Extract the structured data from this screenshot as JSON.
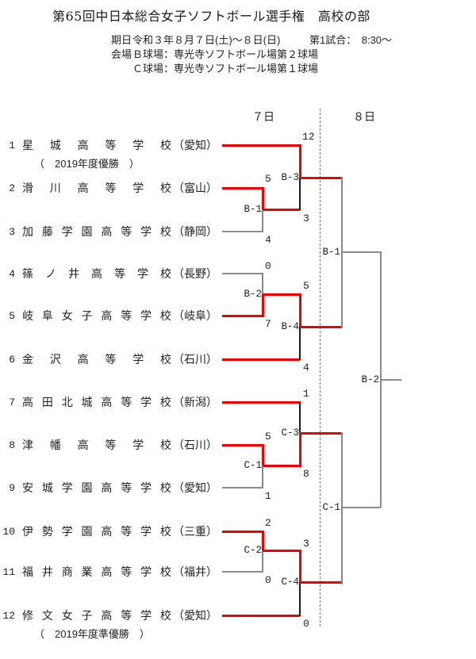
{
  "title": "第65回中日本総合女子ソフトボール選手権　高校の部",
  "info": {
    "date_label": "期日",
    "date_value": "令和３年８月７日(土)～８日(日)",
    "first_game": "第1試合：　8:30～",
    "venue_label": "会場",
    "venue_b": "Ｂ球場：専光寺ソフトボール場第２球場",
    "venue_c": "Ｃ球場：専光寺ソフトボール場第１球場"
  },
  "bracket": {
    "day7_label": "７日",
    "day8_label": "８日",
    "teams": [
      {
        "no": "1",
        "name": "星城高等学校",
        "pref": "（愛知）",
        "note": "（　2019年度優勝　）"
      },
      {
        "no": "2",
        "name": "滑川高等学校",
        "pref": "（富山）"
      },
      {
        "no": "3",
        "name": "加藤学園高等学校",
        "pref": "（静岡）"
      },
      {
        "no": "4",
        "name": "篠ノ井高等学校",
        "pref": "（長野）"
      },
      {
        "no": "5",
        "name": "岐阜女子高等学校",
        "pref": "（岐阜）"
      },
      {
        "no": "6",
        "name": "金沢高等学校",
        "pref": "（石川）"
      },
      {
        "no": "7",
        "name": "高田北城高等学校",
        "pref": "（新潟）"
      },
      {
        "no": "8",
        "name": "津幡高等学校",
        "pref": "（石川）"
      },
      {
        "no": "9",
        "name": "安城学園高等学校",
        "pref": "（愛知）"
      },
      {
        "no": "10",
        "name": "伊勢学園高等学校",
        "pref": "（三重）"
      },
      {
        "no": "11",
        "name": "福井商業高等学校",
        "pref": "（福井）"
      },
      {
        "no": "12",
        "name": "修文女子高等学校",
        "pref": "（愛知）",
        "note": "（　2019年度準優勝　）"
      }
    ],
    "matches": [
      {
        "id": "B-1",
        "day": "7",
        "top_score": "5",
        "bottom_score": "4"
      },
      {
        "id": "B-2",
        "day": "7",
        "top_score": "0",
        "bottom_score": "7"
      },
      {
        "id": "B-3",
        "day": "7",
        "top_score": "12",
        "bottom_score": "3"
      },
      {
        "id": "B-4",
        "day": "7",
        "top_score": "5",
        "bottom_score": "4"
      },
      {
        "id": "C-1",
        "day": "7",
        "top_score": "5",
        "bottom_score": "1"
      },
      {
        "id": "C-2",
        "day": "7",
        "top_score": "2",
        "bottom_score": "0"
      },
      {
        "id": "C-3",
        "day": "7",
        "top_score": "1",
        "bottom_score": "8"
      },
      {
        "id": "C-4",
        "day": "7",
        "top_score": "3",
        "bottom_score": "0"
      },
      {
        "id": "B-1",
        "day": "8"
      },
      {
        "id": "C-1",
        "day": "8"
      },
      {
        "id": "B-2",
        "day": "8"
      }
    ],
    "colors": {
      "winner_path": "#ee0000",
      "loser_line": "#8a8a8a",
      "bracket_line": "#1a1a1a"
    }
  }
}
